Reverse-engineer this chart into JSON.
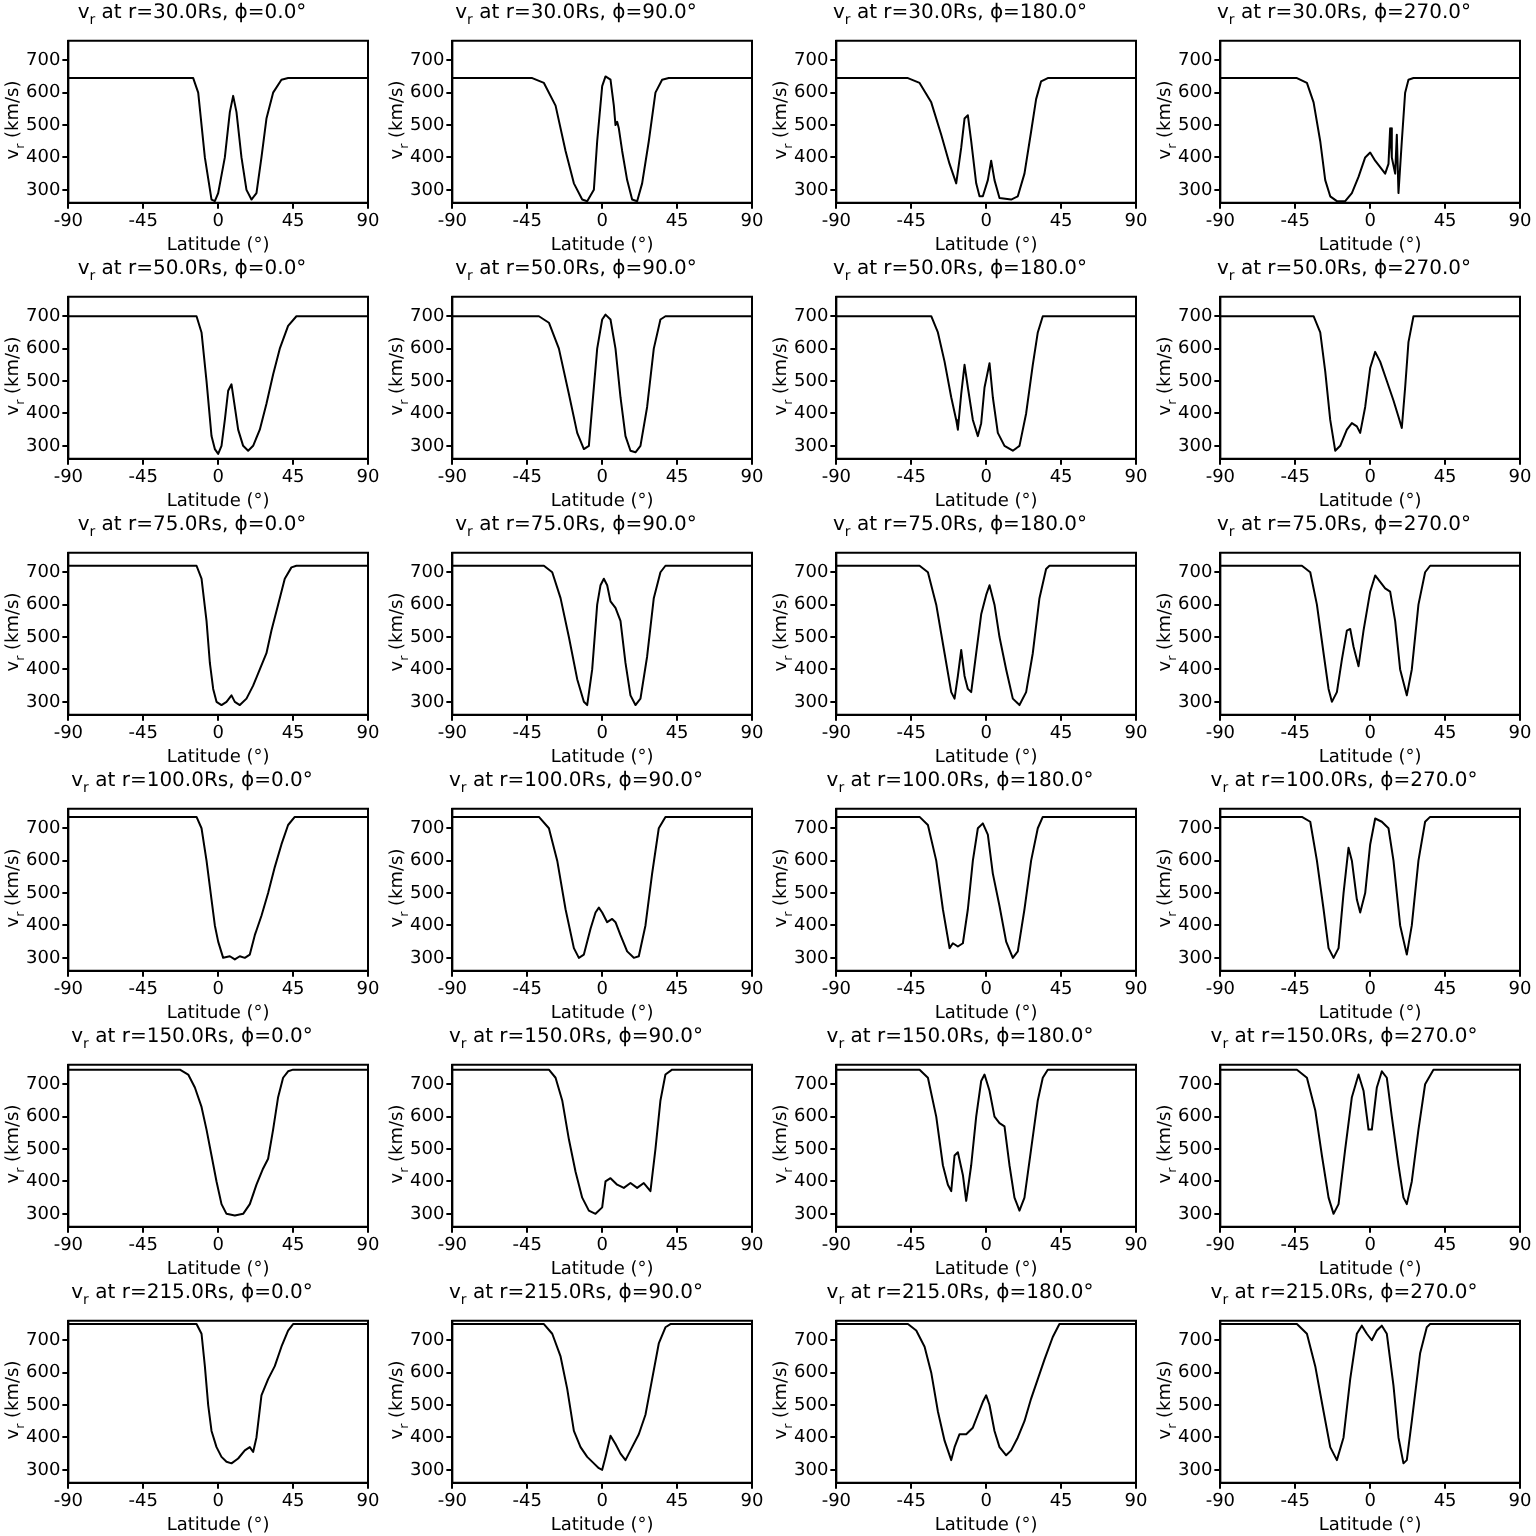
{
  "chart_data": [
    {
      "type": "line",
      "title": "v$_{r}$ at r=30.0Rs, ϕ=0.0°",
      "xlabel": "Latitude (°)",
      "ylabel": "v$_{r}$ (km/s)",
      "color": "#000000",
      "marker": "none",
      "xlim": [
        -90,
        90
      ],
      "xticks": [
        -90,
        -45,
        0,
        45,
        90
      ],
      "ylim": [
        260,
        760
      ],
      "yticks": [
        300,
        400,
        500,
        600,
        700
      ],
      "x": [
        -90,
        -15,
        -12,
        -8,
        -4,
        -2,
        0,
        4,
        7,
        9,
        11,
        14,
        17,
        20,
        23,
        26,
        29,
        33,
        38,
        42,
        90
      ],
      "values": [
        645,
        645,
        600,
        400,
        270,
        265,
        290,
        400,
        540,
        590,
        540,
        400,
        300,
        270,
        290,
        400,
        520,
        600,
        640,
        645,
        645
      ]
    },
    {
      "type": "line",
      "title": "v$_{r}$ at r=30.0Rs, ϕ=90.0°",
      "xlabel": "Latitude (°)",
      "ylabel": "v$_{r}$ (km/s)",
      "color": "#000000",
      "marker": "none",
      "xlim": [
        -90,
        90
      ],
      "xticks": [
        -90,
        -45,
        0,
        45,
        90
      ],
      "ylim": [
        260,
        760
      ],
      "yticks": [
        300,
        400,
        500,
        600,
        700
      ],
      "x": [
        -90,
        -42,
        -35,
        -28,
        -22,
        -17,
        -12,
        -9,
        -5,
        -3,
        0,
        2,
        5,
        7,
        8,
        9,
        10,
        12,
        15,
        18,
        21,
        24,
        28,
        32,
        36,
        40,
        90
      ],
      "values": [
        645,
        645,
        630,
        560,
        420,
        320,
        270,
        265,
        300,
        450,
        620,
        650,
        640,
        560,
        500,
        510,
        490,
        420,
        330,
        270,
        265,
        320,
        450,
        600,
        640,
        645,
        645
      ]
    },
    {
      "type": "line",
      "title": "v$_{r}$ at r=30.0Rs, ϕ=180.0°",
      "xlabel": "Latitude (°)",
      "ylabel": "v$_{r}$ (km/s)",
      "color": "#000000",
      "marker": "none",
      "xlim": [
        -90,
        90
      ],
      "xticks": [
        -90,
        -45,
        0,
        45,
        90
      ],
      "ylim": [
        260,
        760
      ],
      "yticks": [
        300,
        400,
        500,
        600,
        700
      ],
      "x": [
        -90,
        -47,
        -40,
        -33,
        -27,
        -22,
        -18,
        -15,
        -13,
        -11,
        -9,
        -6,
        -4,
        -2,
        1,
        3,
        5,
        8,
        15,
        19,
        23,
        27,
        30,
        33,
        37,
        90
      ],
      "values": [
        645,
        645,
        630,
        570,
        470,
        380,
        320,
        430,
        520,
        530,
        450,
        320,
        280,
        280,
        330,
        390,
        330,
        275,
        270,
        280,
        350,
        480,
        580,
        635,
        645,
        645
      ]
    },
    {
      "type": "line",
      "title": "v$_{r}$ at r=30.0Rs, ϕ=270.0°",
      "xlabel": "Latitude (°)",
      "ylabel": "v$_{r}$ (km/s)",
      "color": "#000000",
      "marker": "none",
      "xlim": [
        -90,
        90
      ],
      "xticks": [
        -90,
        -45,
        0,
        45,
        90
      ],
      "ylim": [
        260,
        760
      ],
      "yticks": [
        300,
        400,
        500,
        600,
        700
      ],
      "x": [
        -90,
        -44,
        -38,
        -34,
        -30,
        -27,
        -24,
        -20,
        -15,
        -11,
        -7,
        -3,
        0,
        3,
        6,
        9,
        11,
        12,
        13,
        15,
        16,
        17,
        19,
        21,
        23,
        26,
        90
      ],
      "values": [
        645,
        645,
        630,
        570,
        450,
        330,
        280,
        265,
        265,
        290,
        340,
        400,
        415,
        390,
        370,
        350,
        380,
        490,
        400,
        350,
        470,
        290,
        450,
        600,
        640,
        645,
        645
      ]
    },
    {
      "type": "line",
      "title": "v$_{r}$ at r=50.0Rs, ϕ=0.0°",
      "xlabel": "Latitude (°)",
      "ylabel": "v$_{r}$ (km/s)",
      "color": "#000000",
      "marker": "none",
      "xlim": [
        -90,
        90
      ],
      "xticks": [
        -90,
        -45,
        0,
        45,
        90
      ],
      "ylim": [
        260,
        760
      ],
      "yticks": [
        300,
        400,
        500,
        600,
        700
      ],
      "x": [
        -90,
        -13,
        -10,
        -7,
        -4,
        -2,
        0,
        2,
        4,
        6,
        8,
        10,
        12,
        15,
        18,
        21,
        25,
        29,
        33,
        37,
        42,
        47,
        90
      ],
      "values": [
        700,
        700,
        650,
        500,
        330,
        290,
        275,
        300,
        380,
        470,
        490,
        420,
        350,
        300,
        285,
        300,
        350,
        430,
        520,
        600,
        670,
        700,
        700
      ]
    },
    {
      "type": "line",
      "title": "v$_{r}$ at r=50.0Rs, ϕ=90.0°",
      "xlabel": "Latitude (°)",
      "ylabel": "v$_{r}$ (km/s)",
      "color": "#000000",
      "marker": "none",
      "xlim": [
        -90,
        90
      ],
      "xticks": [
        -90,
        -45,
        0,
        45,
        90
      ],
      "ylim": [
        260,
        760
      ],
      "yticks": [
        300,
        400,
        500,
        600,
        700
      ],
      "x": [
        -90,
        -38,
        -32,
        -26,
        -20,
        -15,
        -11,
        -8,
        -6,
        -3,
        0,
        2,
        5,
        8,
        11,
        14,
        17,
        20,
        23,
        27,
        31,
        35,
        38,
        90
      ],
      "values": [
        700,
        700,
        680,
        600,
        460,
        340,
        290,
        300,
        420,
        600,
        690,
        705,
        690,
        600,
        450,
        330,
        285,
        280,
        300,
        420,
        600,
        690,
        700,
        700
      ]
    },
    {
      "type": "line",
      "title": "v$_{r}$ at r=50.0Rs, ϕ=180.0°",
      "xlabel": "Latitude (°)",
      "ylabel": "v$_{r}$ (km/s)",
      "color": "#000000",
      "marker": "none",
      "xlim": [
        -90,
        90
      ],
      "xticks": [
        -90,
        -45,
        0,
        45,
        90
      ],
      "ylim": [
        260,
        760
      ],
      "yticks": [
        300,
        400,
        500,
        600,
        700
      ],
      "x": [
        -90,
        -33,
        -29,
        -25,
        -21,
        -18,
        -17,
        -15,
        -13,
        -11,
        -8,
        -5,
        -3,
        -1,
        2,
        4,
        7,
        11,
        16,
        20,
        24,
        28,
        31,
        34,
        90
      ],
      "values": [
        700,
        700,
        650,
        560,
        450,
        380,
        350,
        460,
        550,
        480,
        380,
        330,
        370,
        480,
        555,
        450,
        340,
        300,
        285,
        300,
        400,
        550,
        650,
        700,
        700
      ]
    },
    {
      "type": "line",
      "title": "v$_{r}$ at r=50.0Rs, ϕ=270.0°",
      "xlabel": "Latitude (°)",
      "ylabel": "v$_{r}$ (km/s)",
      "color": "#000000",
      "marker": "none",
      "xlim": [
        -90,
        90
      ],
      "xticks": [
        -90,
        -45,
        0,
        45,
        90
      ],
      "ylim": [
        260,
        760
      ],
      "yticks": [
        300,
        400,
        500,
        600,
        700
      ],
      "x": [
        -90,
        -34,
        -30,
        -27,
        -24,
        -21,
        -18,
        -14,
        -11,
        -8,
        -6,
        -3,
        0,
        3,
        6,
        10,
        14,
        17,
        19,
        21,
        23,
        26,
        90
      ],
      "values": [
        700,
        700,
        650,
        530,
        380,
        285,
        300,
        350,
        370,
        360,
        340,
        420,
        540,
        590,
        560,
        500,
        440,
        390,
        355,
        480,
        620,
        700,
        700
      ]
    },
    {
      "type": "line",
      "title": "v$_{r}$ at r=75.0Rs, ϕ=0.0°",
      "xlabel": "Latitude (°)",
      "ylabel": "v$_{r}$ (km/s)",
      "color": "#000000",
      "marker": "none",
      "xlim": [
        -90,
        90
      ],
      "xticks": [
        -90,
        -45,
        0,
        45,
        90
      ],
      "ylim": [
        260,
        760
      ],
      "yticks": [
        300,
        400,
        500,
        600,
        700
      ],
      "x": [
        -90,
        -13,
        -10,
        -7,
        -5,
        -3,
        -1,
        2,
        5,
        8,
        10,
        13,
        17,
        21,
        25,
        29,
        32,
        36,
        40,
        44,
        47,
        90
      ],
      "values": [
        720,
        720,
        680,
        550,
        420,
        340,
        300,
        290,
        300,
        320,
        300,
        290,
        310,
        350,
        400,
        450,
        520,
        600,
        680,
        715,
        720,
        720
      ]
    },
    {
      "type": "line",
      "title": "v$_{r}$ at r=75.0Rs, ϕ=90.0°",
      "xlabel": "Latitude (°)",
      "ylabel": "v$_{r}$ (km/s)",
      "color": "#000000",
      "marker": "none",
      "xlim": [
        -90,
        90
      ],
      "xticks": [
        -90,
        -45,
        0,
        45,
        90
      ],
      "ylim": [
        260,
        760
      ],
      "yticks": [
        300,
        400,
        500,
        600,
        700
      ],
      "x": [
        -90,
        -35,
        -30,
        -25,
        -20,
        -15,
        -11,
        -9,
        -6,
        -3,
        -1,
        1,
        3,
        5,
        8,
        11,
        14,
        17,
        20,
        23,
        27,
        31,
        35,
        38,
        90
      ],
      "values": [
        720,
        720,
        700,
        620,
        500,
        370,
        300,
        290,
        400,
        600,
        660,
        680,
        660,
        610,
        590,
        550,
        420,
        320,
        290,
        310,
        440,
        620,
        700,
        720,
        720
      ]
    },
    {
      "type": "line",
      "title": "v$_{r}$ at r=75.0Rs, ϕ=180.0°",
      "xlabel": "Latitude (°)",
      "ylabel": "v$_{r}$ (km/s)",
      "color": "#000000",
      "marker": "none",
      "xlim": [
        -90,
        90
      ],
      "xticks": [
        -90,
        -45,
        0,
        45,
        90
      ],
      "ylim": [
        260,
        760
      ],
      "yticks": [
        300,
        400,
        500,
        600,
        700
      ],
      "x": [
        -90,
        -40,
        -35,
        -30,
        -25,
        -21,
        -19,
        -17,
        -15,
        -13,
        -11,
        -9,
        -6,
        -3,
        0,
        2,
        5,
        8,
        12,
        16,
        20,
        24,
        28,
        32,
        36,
        38,
        90
      ],
      "values": [
        720,
        720,
        700,
        600,
        450,
        330,
        310,
        380,
        460,
        380,
        340,
        330,
        450,
        570,
        630,
        660,
        600,
        500,
        400,
        310,
        290,
        330,
        450,
        620,
        710,
        720,
        720
      ]
    },
    {
      "type": "line",
      "title": "v$_{r}$ at r=75.0Rs, ϕ=270.0°",
      "xlabel": "Latitude (°)",
      "ylabel": "v$_{r}$ (km/s)",
      "color": "#000000",
      "marker": "none",
      "xlim": [
        -90,
        90
      ],
      "xticks": [
        -90,
        -45,
        0,
        45,
        90
      ],
      "ylim": [
        260,
        760
      ],
      "yticks": [
        300,
        400,
        500,
        600,
        700
      ],
      "x": [
        -90,
        -41,
        -36,
        -32,
        -28,
        -25,
        -23,
        -20,
        -17,
        -14,
        -12,
        -10,
        -7,
        -4,
        0,
        3,
        6,
        9,
        12,
        15,
        18,
        22,
        25,
        29,
        33,
        36,
        90
      ],
      "values": [
        720,
        720,
        700,
        600,
        450,
        340,
        300,
        330,
        430,
        520,
        525,
        470,
        410,
        520,
        640,
        690,
        670,
        650,
        640,
        550,
        400,
        320,
        400,
        600,
        700,
        720,
        720
      ]
    },
    {
      "type": "line",
      "title": "v$_{r}$ at r=100.0Rs, ϕ=0.0°",
      "xlabel": "Latitude (°)",
      "ylabel": "v$_{r}$ (km/s)",
      "color": "#000000",
      "marker": "none",
      "xlim": [
        -90,
        90
      ],
      "xticks": [
        -90,
        -45,
        0,
        45,
        90
      ],
      "ylim": [
        260,
        760
      ],
      "yticks": [
        300,
        400,
        500,
        600,
        700
      ],
      "x": [
        -90,
        -13,
        -10,
        -7,
        -4,
        -2,
        0,
        3,
        7,
        10,
        13,
        16,
        19,
        22,
        26,
        30,
        34,
        38,
        42,
        46,
        90
      ],
      "values": [
        735,
        735,
        700,
        600,
        480,
        400,
        350,
        300,
        305,
        295,
        305,
        300,
        310,
        370,
        430,
        500,
        580,
        650,
        710,
        735,
        735
      ]
    },
    {
      "type": "line",
      "title": "v$_{r}$ at r=100.0Rs, ϕ=90.0°",
      "xlabel": "Latitude (°)",
      "ylabel": "v$_{r}$ (km/s)",
      "color": "#000000",
      "marker": "none",
      "xlim": [
        -90,
        90
      ],
      "xticks": [
        -90,
        -45,
        0,
        45,
        90
      ],
      "ylim": [
        260,
        760
      ],
      "yticks": [
        300,
        400,
        500,
        600,
        700
      ],
      "x": [
        -90,
        -38,
        -32,
        -27,
        -22,
        -17,
        -14,
        -11,
        -7,
        -4,
        -2,
        0,
        3,
        6,
        8,
        11,
        15,
        19,
        22,
        26,
        30,
        34,
        38,
        90
      ],
      "values": [
        735,
        735,
        700,
        600,
        450,
        330,
        300,
        310,
        390,
        440,
        455,
        440,
        410,
        420,
        410,
        370,
        320,
        300,
        305,
        400,
        560,
        700,
        735,
        735
      ]
    },
    {
      "type": "line",
      "title": "v$_{r}$ at r=100.0Rs, ϕ=180.0°",
      "xlabel": "Latitude (°)",
      "ylabel": "v$_{r}$ (km/s)",
      "color": "#000000",
      "marker": "none",
      "xlim": [
        -90,
        90
      ],
      "xticks": [
        -90,
        -45,
        0,
        45,
        90
      ],
      "ylim": [
        260,
        760
      ],
      "yticks": [
        300,
        400,
        500,
        600,
        700
      ],
      "x": [
        -90,
        -40,
        -35,
        -30,
        -26,
        -22,
        -20,
        -17,
        -14,
        -11,
        -8,
        -5,
        -2,
        1,
        4,
        8,
        12,
        16,
        19,
        23,
        27,
        31,
        34,
        90
      ],
      "values": [
        735,
        735,
        710,
        600,
        450,
        330,
        345,
        335,
        345,
        450,
        600,
        700,
        715,
        680,
        560,
        460,
        350,
        300,
        320,
        450,
        600,
        700,
        735,
        735
      ]
    },
    {
      "type": "line",
      "title": "v$_{r}$ at r=100.0Rs, ϕ=270.0°",
      "xlabel": "Latitude (°)",
      "ylabel": "v$_{r}$ (km/s)",
      "color": "#000000",
      "marker": "none",
      "xlim": [
        -90,
        90
      ],
      "xticks": [
        -90,
        -45,
        0,
        45,
        90
      ],
      "ylim": [
        260,
        760
      ],
      "yticks": [
        300,
        400,
        500,
        600,
        700
      ],
      "x": [
        -90,
        -41,
        -36,
        -32,
        -28,
        -25,
        -22,
        -19,
        -16,
        -13,
        -11,
        -8,
        -6,
        -3,
        0,
        3,
        7,
        11,
        14,
        18,
        22,
        25,
        29,
        33,
        36,
        90
      ],
      "values": [
        735,
        735,
        720,
        600,
        450,
        330,
        300,
        330,
        500,
        640,
        600,
        480,
        440,
        500,
        650,
        730,
        720,
        700,
        600,
        400,
        310,
        400,
        600,
        720,
        735,
        735
      ]
    },
    {
      "type": "line",
      "title": "v$_{r}$ at r=150.0Rs, ϕ=0.0°",
      "xlabel": "Latitude (°)",
      "ylabel": "v$_{r}$ (km/s)",
      "color": "#000000",
      "marker": "none",
      "xlim": [
        -90,
        90
      ],
      "xticks": [
        -90,
        -45,
        0,
        45,
        90
      ],
      "ylim": [
        260,
        760
      ],
      "yticks": [
        300,
        400,
        500,
        600,
        700
      ],
      "x": [
        -90,
        -23,
        -18,
        -14,
        -10,
        -7,
        -4,
        -1,
        2,
        5,
        10,
        15,
        19,
        23,
        27,
        30,
        33,
        36,
        39,
        42,
        45,
        90
      ],
      "values": [
        745,
        745,
        730,
        690,
        630,
        560,
        480,
        400,
        330,
        300,
        295,
        300,
        330,
        390,
        440,
        470,
        560,
        660,
        720,
        740,
        745,
        745
      ]
    },
    {
      "type": "line",
      "title": "v$_{r}$ at r=150.0Rs, ϕ=90.0°",
      "xlabel": "Latitude (°)",
      "ylabel": "v$_{r}$ (km/s)",
      "color": "#000000",
      "marker": "none",
      "xlim": [
        -90,
        90
      ],
      "xticks": [
        -90,
        -45,
        0,
        45,
        90
      ],
      "ylim": [
        260,
        760
      ],
      "yticks": [
        300,
        400,
        500,
        600,
        700
      ],
      "x": [
        -90,
        -32,
        -28,
        -24,
        -20,
        -16,
        -12,
        -8,
        -4,
        0,
        2,
        5,
        9,
        13,
        17,
        21,
        25,
        29,
        32,
        35,
        38,
        42,
        90
      ],
      "values": [
        745,
        745,
        720,
        650,
        530,
        430,
        350,
        310,
        300,
        320,
        400,
        410,
        390,
        380,
        395,
        380,
        395,
        370,
        500,
        650,
        730,
        745,
        745
      ]
    },
    {
      "type": "line",
      "title": "v$_{r}$ at r=150.0Rs, ϕ=180.0°",
      "xlabel": "Latitude (°)",
      "ylabel": "v$_{r}$ (km/s)",
      "color": "#000000",
      "marker": "none",
      "xlim": [
        -90,
        90
      ],
      "xticks": [
        -90,
        -45,
        0,
        45,
        90
      ],
      "ylim": [
        260,
        760
      ],
      "yticks": [
        300,
        400,
        500,
        600,
        700
      ],
      "x": [
        -90,
        -40,
        -35,
        -30,
        -26,
        -23,
        -21,
        -19,
        -17,
        -14,
        -12,
        -9,
        -6,
        -3,
        -1,
        2,
        5,
        8,
        11,
        14,
        17,
        20,
        23,
        27,
        31,
        34,
        37,
        90
      ],
      "values": [
        745,
        745,
        720,
        600,
        450,
        390,
        370,
        480,
        490,
        420,
        340,
        450,
        600,
        710,
        730,
        680,
        600,
        580,
        570,
        450,
        350,
        310,
        350,
        500,
        650,
        720,
        745,
        745
      ]
    },
    {
      "type": "line",
      "title": "v$_{r}$ at r=150.0Rs, ϕ=270.0°",
      "xlabel": "Latitude (°)",
      "ylabel": "v$_{r}$ (km/s)",
      "color": "#000000",
      "marker": "none",
      "xlim": [
        -90,
        90
      ],
      "xticks": [
        -90,
        -45,
        0,
        45,
        90
      ],
      "ylim": [
        260,
        760
      ],
      "yticks": [
        300,
        400,
        500,
        600,
        700
      ],
      "x": [
        -90,
        -44,
        -38,
        -33,
        -29,
        -25,
        -22,
        -19,
        -15,
        -11,
        -7,
        -4,
        -1,
        1,
        4,
        7,
        10,
        13,
        17,
        20,
        22,
        25,
        29,
        33,
        38,
        90
      ],
      "values": [
        745,
        745,
        720,
        620,
        480,
        350,
        300,
        330,
        500,
        660,
        730,
        680,
        560,
        560,
        690,
        740,
        720,
        600,
        450,
        350,
        330,
        400,
        560,
        700,
        745,
        745
      ]
    },
    {
      "type": "line",
      "title": "v$_{r}$ at r=215.0Rs, ϕ=0.0°",
      "xlabel": "Latitude (°)",
      "ylabel": "v$_{r}$ (km/s)",
      "color": "#000000",
      "marker": "none",
      "xlim": [
        -90,
        90
      ],
      "xticks": [
        -90,
        -45,
        0,
        45,
        90
      ],
      "ylim": [
        260,
        760
      ],
      "yticks": [
        300,
        400,
        500,
        600,
        700
      ],
      "x": [
        -90,
        -13,
        -10,
        -8,
        -6,
        -4,
        -1,
        2,
        5,
        8,
        12,
        16,
        19,
        21,
        23,
        26,
        30,
        34,
        38,
        42,
        45,
        90
      ],
      "values": [
        750,
        750,
        720,
        620,
        500,
        420,
        370,
        340,
        325,
        320,
        335,
        360,
        370,
        355,
        400,
        530,
        580,
        620,
        680,
        730,
        750,
        750
      ]
    },
    {
      "type": "line",
      "title": "v$_{r}$ at r=215.0Rs, ϕ=90.0°",
      "xlabel": "Latitude (°)",
      "ylabel": "v$_{r}$ (km/s)",
      "color": "#000000",
      "marker": "none",
      "xlim": [
        -90,
        90
      ],
      "xticks": [
        -90,
        -45,
        0,
        45,
        90
      ],
      "ylim": [
        260,
        760
      ],
      "yticks": [
        300,
        400,
        500,
        600,
        700
      ],
      "x": [
        -90,
        -35,
        -30,
        -25,
        -21,
        -17,
        -13,
        -9,
        -5,
        -2,
        0,
        2,
        5,
        8,
        11,
        14,
        18,
        22,
        26,
        30,
        34,
        38,
        41,
        90
      ],
      "values": [
        750,
        750,
        720,
        650,
        550,
        420,
        370,
        340,
        320,
        305,
        300,
        340,
        405,
        380,
        350,
        330,
        370,
        410,
        470,
        580,
        690,
        740,
        750,
        750
      ]
    },
    {
      "type": "line",
      "title": "v$_{r}$ at r=215.0Rs, ϕ=180.0°",
      "xlabel": "Latitude (°)",
      "ylabel": "v$_{r}$ (km/s)",
      "color": "#000000",
      "marker": "none",
      "xlim": [
        -90,
        90
      ],
      "xticks": [
        -90,
        -45,
        0,
        45,
        90
      ],
      "ylim": [
        260,
        760
      ],
      "yticks": [
        300,
        400,
        500,
        600,
        700
      ],
      "x": [
        -90,
        -47,
        -42,
        -37,
        -33,
        -29,
        -25,
        -21,
        -19,
        -16,
        -12,
        -8,
        -5,
        -2,
        0,
        2,
        5,
        8,
        12,
        15,
        19,
        23,
        27,
        31,
        35,
        40,
        44,
        90
      ],
      "values": [
        750,
        750,
        730,
        680,
        600,
        480,
        390,
        330,
        370,
        410,
        410,
        430,
        470,
        510,
        530,
        500,
        420,
        370,
        345,
        360,
        400,
        450,
        520,
        580,
        640,
        710,
        750,
        750
      ]
    },
    {
      "type": "line",
      "title": "v$_{r}$ at r=215.0Rs, ϕ=270.0°",
      "xlabel": "Latitude (°)",
      "ylabel": "v$_{r}$ (km/s)",
      "color": "#000000",
      "marker": "none",
      "xlim": [
        -90,
        90
      ],
      "xticks": [
        -90,
        -45,
        0,
        45,
        90
      ],
      "ylim": [
        260,
        760
      ],
      "yticks": [
        300,
        400,
        500,
        600,
        700
      ],
      "x": [
        -90,
        -44,
        -38,
        -33,
        -28,
        -24,
        -20,
        -16,
        -12,
        -8,
        -5,
        -2,
        1,
        4,
        7,
        10,
        14,
        17,
        20,
        22,
        25,
        30,
        34,
        36,
        90
      ],
      "values": [
        750,
        750,
        720,
        620,
        480,
        370,
        330,
        400,
        580,
        720,
        745,
        720,
        700,
        730,
        745,
        720,
        560,
        400,
        320,
        330,
        450,
        660,
        740,
        750,
        750
      ]
    }
  ]
}
